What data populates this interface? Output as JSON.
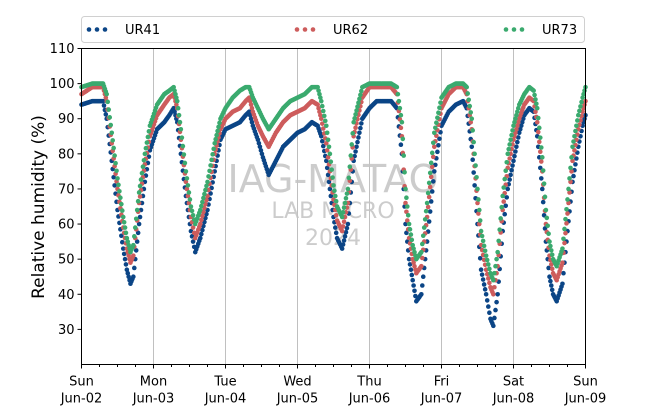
{
  "chart_data": {
    "type": "scatter",
    "ylabel": "Relative humidity (%)",
    "ylim": [
      20,
      110
    ],
    "yticks": [
      30,
      40,
      50,
      60,
      70,
      80,
      90,
      100,
      110
    ],
    "xlim_days": [
      0,
      7
    ],
    "xticks": [
      {
        "day": "Sun",
        "date": "Jun-02"
      },
      {
        "day": "Mon",
        "date": "Jun-03"
      },
      {
        "day": "Tue",
        "date": "Jun-04"
      },
      {
        "day": "Wed",
        "date": "Jun-05"
      },
      {
        "day": "Thu",
        "date": "Jun-06"
      },
      {
        "day": "Fri",
        "date": "Jun-07"
      },
      {
        "day": "Sat",
        "date": "Jun-08"
      },
      {
        "day": "Sun",
        "date": "Jun-09"
      }
    ],
    "grid": "vertical",
    "legend_position": "top",
    "watermark": [
      "IAG-MATAO",
      "LAB MICRO",
      "2024"
    ],
    "series": [
      {
        "name": "UR41",
        "color": "#0b4586",
        "points": [
          [
            0.0,
            94
          ],
          [
            0.15,
            95
          ],
          [
            0.3,
            95
          ],
          [
            0.35,
            90
          ],
          [
            0.42,
            78
          ],
          [
            0.5,
            64
          ],
          [
            0.58,
            53
          ],
          [
            0.63,
            47
          ],
          [
            0.68,
            43
          ],
          [
            0.72,
            45
          ],
          [
            0.8,
            60
          ],
          [
            0.88,
            72
          ],
          [
            0.95,
            81
          ],
          [
            1.05,
            87
          ],
          [
            1.15,
            89
          ],
          [
            1.22,
            91
          ],
          [
            1.28,
            93
          ],
          [
            1.33,
            89
          ],
          [
            1.38,
            80
          ],
          [
            1.45,
            68
          ],
          [
            1.52,
            58
          ],
          [
            1.58,
            52
          ],
          [
            1.65,
            56
          ],
          [
            1.75,
            64
          ],
          [
            1.85,
            75
          ],
          [
            1.93,
            84
          ],
          [
            2.0,
            87
          ],
          [
            2.1,
            88
          ],
          [
            2.2,
            89
          ],
          [
            2.28,
            91
          ],
          [
            2.33,
            92
          ],
          [
            2.38,
            88
          ],
          [
            2.45,
            84
          ],
          [
            2.52,
            79
          ],
          [
            2.6,
            74
          ],
          [
            2.7,
            78
          ],
          [
            2.8,
            82
          ],
          [
            2.9,
            84
          ],
          [
            3.0,
            86
          ],
          [
            3.1,
            87
          ],
          [
            3.2,
            89
          ],
          [
            3.28,
            88
          ],
          [
            3.33,
            85
          ],
          [
            3.4,
            78
          ],
          [
            3.45,
            70
          ],
          [
            3.5,
            62
          ],
          [
            3.55,
            56
          ],
          [
            3.62,
            53
          ],
          [
            3.7,
            60
          ],
          [
            3.78,
            78
          ],
          [
            3.9,
            90
          ],
          [
            4.0,
            93
          ],
          [
            4.1,
            95
          ],
          [
            4.2,
            95
          ],
          [
            4.3,
            95
          ],
          [
            4.38,
            93
          ],
          [
            4.45,
            80
          ],
          [
            4.5,
            60
          ],
          [
            4.55,
            50
          ],
          [
            4.6,
            44
          ],
          [
            4.65,
            38
          ],
          [
            4.72,
            40
          ],
          [
            4.8,
            55
          ],
          [
            4.9,
            75
          ],
          [
            5.0,
            88
          ],
          [
            5.1,
            92
          ],
          [
            5.2,
            94
          ],
          [
            5.3,
            95
          ],
          [
            5.35,
            93
          ],
          [
            5.42,
            82
          ],
          [
            5.5,
            60
          ],
          [
            5.55,
            47
          ],
          [
            5.62,
            40
          ],
          [
            5.68,
            33
          ],
          [
            5.72,
            31
          ],
          [
            5.78,
            40
          ],
          [
            5.85,
            58
          ],
          [
            5.92,
            70
          ],
          [
            6.0,
            78
          ],
          [
            6.08,
            86
          ],
          [
            6.15,
            91
          ],
          [
            6.22,
            93
          ],
          [
            6.28,
            92
          ],
          [
            6.33,
            85
          ],
          [
            6.4,
            70
          ],
          [
            6.45,
            55
          ],
          [
            6.5,
            45
          ],
          [
            6.55,
            40
          ],
          [
            6.6,
            38
          ],
          [
            6.68,
            43
          ],
          [
            6.75,
            58
          ],
          [
            6.82,
            72
          ],
          [
            6.9,
            82
          ],
          [
            6.96,
            88
          ],
          [
            7.0,
            91
          ]
        ]
      },
      {
        "name": "UR62",
        "color": "#cd5c5c",
        "points": [
          [
            0.0,
            97
          ],
          [
            0.15,
            99
          ],
          [
            0.3,
            99
          ],
          [
            0.35,
            95
          ],
          [
            0.42,
            83
          ],
          [
            0.5,
            70
          ],
          [
            0.58,
            59
          ],
          [
            0.63,
            53
          ],
          [
            0.68,
            49
          ],
          [
            0.72,
            51
          ],
          [
            0.8,
            66
          ],
          [
            0.88,
            77
          ],
          [
            0.95,
            85
          ],
          [
            1.05,
            91
          ],
          [
            1.15,
            94
          ],
          [
            1.22,
            96
          ],
          [
            1.28,
            97
          ],
          [
            1.33,
            93
          ],
          [
            1.38,
            84
          ],
          [
            1.45,
            72
          ],
          [
            1.52,
            62
          ],
          [
            1.58,
            56
          ],
          [
            1.65,
            60
          ],
          [
            1.75,
            68
          ],
          [
            1.85,
            80
          ],
          [
            1.93,
            87
          ],
          [
            2.0,
            90
          ],
          [
            2.1,
            92
          ],
          [
            2.2,
            93
          ],
          [
            2.28,
            95
          ],
          [
            2.33,
            96
          ],
          [
            2.38,
            92
          ],
          [
            2.45,
            88
          ],
          [
            2.52,
            85
          ],
          [
            2.6,
            82
          ],
          [
            2.7,
            86
          ],
          [
            2.8,
            89
          ],
          [
            2.9,
            91
          ],
          [
            3.0,
            92
          ],
          [
            3.1,
            93
          ],
          [
            3.2,
            95
          ],
          [
            3.28,
            94
          ],
          [
            3.33,
            90
          ],
          [
            3.4,
            83
          ],
          [
            3.45,
            75
          ],
          [
            3.5,
            67
          ],
          [
            3.55,
            61
          ],
          [
            3.62,
            58
          ],
          [
            3.7,
            66
          ],
          [
            3.78,
            85
          ],
          [
            3.9,
            96
          ],
          [
            4.0,
            99
          ],
          [
            4.1,
            99
          ],
          [
            4.2,
            99
          ],
          [
            4.3,
            99
          ],
          [
            4.38,
            97
          ],
          [
            4.45,
            85
          ],
          [
            4.5,
            66
          ],
          [
            4.55,
            56
          ],
          [
            4.6,
            50
          ],
          [
            4.65,
            46
          ],
          [
            4.72,
            48
          ],
          [
            4.8,
            62
          ],
          [
            4.9,
            82
          ],
          [
            5.0,
            93
          ],
          [
            5.1,
            97
          ],
          [
            5.2,
            99
          ],
          [
            5.3,
            99
          ],
          [
            5.35,
            97
          ],
          [
            5.42,
            87
          ],
          [
            5.5,
            66
          ],
          [
            5.55,
            54
          ],
          [
            5.62,
            47
          ],
          [
            5.68,
            42
          ],
          [
            5.72,
            40
          ],
          [
            5.78,
            48
          ],
          [
            5.85,
            64
          ],
          [
            5.92,
            76
          ],
          [
            6.0,
            84
          ],
          [
            6.08,
            90
          ],
          [
            6.15,
            94
          ],
          [
            6.22,
            96
          ],
          [
            6.28,
            95
          ],
          [
            6.33,
            89
          ],
          [
            6.4,
            75
          ],
          [
            6.45,
            60
          ],
          [
            6.5,
            51
          ],
          [
            6.55,
            46
          ],
          [
            6.6,
            44
          ],
          [
            6.68,
            49
          ],
          [
            6.75,
            63
          ],
          [
            6.82,
            78
          ],
          [
            6.9,
            87
          ],
          [
            6.96,
            92
          ],
          [
            7.0,
            95
          ]
        ]
      },
      {
        "name": "UR73",
        "color": "#3aaa6e",
        "points": [
          [
            0.0,
            99
          ],
          [
            0.15,
            100
          ],
          [
            0.3,
            100
          ],
          [
            0.35,
            97
          ],
          [
            0.42,
            86
          ],
          [
            0.5,
            73
          ],
          [
            0.58,
            62
          ],
          [
            0.63,
            56
          ],
          [
            0.68,
            52
          ],
          [
            0.72,
            54
          ],
          [
            0.8,
            69
          ],
          [
            0.88,
            80
          ],
          [
            0.95,
            88
          ],
          [
            1.05,
            94
          ],
          [
            1.15,
            97
          ],
          [
            1.22,
            98
          ],
          [
            1.28,
            99
          ],
          [
            1.33,
            95
          ],
          [
            1.38,
            87
          ],
          [
            1.45,
            75
          ],
          [
            1.52,
            65
          ],
          [
            1.58,
            60
          ],
          [
            1.65,
            64
          ],
          [
            1.75,
            72
          ],
          [
            1.85,
            83
          ],
          [
            1.93,
            90
          ],
          [
            2.0,
            93
          ],
          [
            2.1,
            96
          ],
          [
            2.2,
            98
          ],
          [
            2.28,
            99
          ],
          [
            2.33,
            99
          ],
          [
            2.38,
            96
          ],
          [
            2.45,
            93
          ],
          [
            2.52,
            90
          ],
          [
            2.6,
            87
          ],
          [
            2.7,
            90
          ],
          [
            2.8,
            93
          ],
          [
            2.9,
            95
          ],
          [
            3.0,
            96
          ],
          [
            3.1,
            97
          ],
          [
            3.2,
            99
          ],
          [
            3.28,
            99
          ],
          [
            3.33,
            95
          ],
          [
            3.4,
            88
          ],
          [
            3.45,
            80
          ],
          [
            3.5,
            71
          ],
          [
            3.55,
            65
          ],
          [
            3.62,
            62
          ],
          [
            3.7,
            70
          ],
          [
            3.78,
            89
          ],
          [
            3.9,
            99
          ],
          [
            4.0,
            100
          ],
          [
            4.1,
            100
          ],
          [
            4.2,
            100
          ],
          [
            4.3,
            100
          ],
          [
            4.38,
            99
          ],
          [
            4.45,
            89
          ],
          [
            4.5,
            70
          ],
          [
            4.55,
            60
          ],
          [
            4.6,
            54
          ],
          [
            4.65,
            50
          ],
          [
            4.72,
            52
          ],
          [
            4.8,
            66
          ],
          [
            4.9,
            86
          ],
          [
            5.0,
            96
          ],
          [
            5.1,
            99
          ],
          [
            5.2,
            100
          ],
          [
            5.3,
            100
          ],
          [
            5.35,
            99
          ],
          [
            5.42,
            90
          ],
          [
            5.5,
            70
          ],
          [
            5.55,
            58
          ],
          [
            5.62,
            51
          ],
          [
            5.68,
            46
          ],
          [
            5.72,
            44
          ],
          [
            5.78,
            52
          ],
          [
            5.85,
            68
          ],
          [
            5.92,
            80
          ],
          [
            6.0,
            88
          ],
          [
            6.08,
            94
          ],
          [
            6.15,
            97
          ],
          [
            6.22,
            99
          ],
          [
            6.28,
            98
          ],
          [
            6.33,
            93
          ],
          [
            6.4,
            79
          ],
          [
            6.45,
            64
          ],
          [
            6.5,
            55
          ],
          [
            6.55,
            50
          ],
          [
            6.6,
            48
          ],
          [
            6.68,
            53
          ],
          [
            6.75,
            67
          ],
          [
            6.82,
            82
          ],
          [
            6.9,
            91
          ],
          [
            6.96,
            96
          ],
          [
            7.0,
            99
          ]
        ]
      }
    ]
  }
}
